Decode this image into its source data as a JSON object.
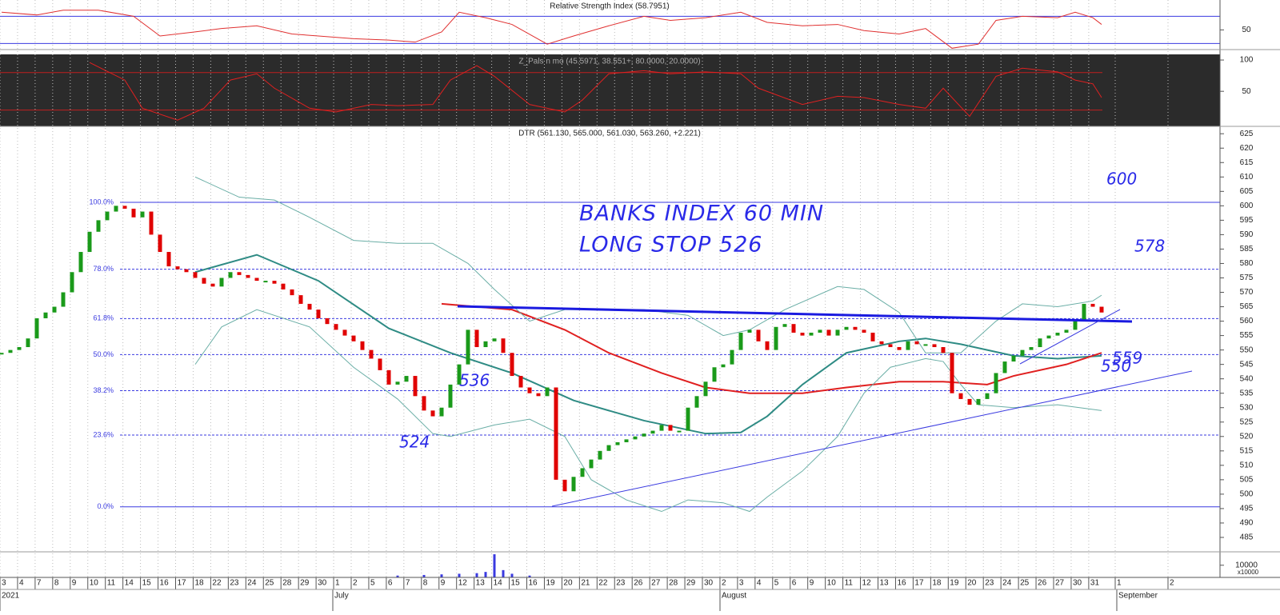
{
  "chart_data": [
    {
      "type": "line",
      "title": "Relative Strength Index (58.7951)",
      "ylim": [
        21,
        94
      ],
      "yticks": [
        50
      ],
      "levels": [
        70,
        30
      ],
      "level_color": "#3a3ae0",
      "color": "#e03030",
      "x": [
        0,
        4,
        7,
        11,
        15,
        18,
        22,
        25,
        29,
        33,
        36,
        40,
        44,
        47,
        50,
        52,
        55,
        58,
        62,
        65,
        69,
        73,
        76,
        80,
        84,
        87,
        91,
        95,
        98,
        102,
        105,
        108,
        111,
        113,
        116,
        120,
        122,
        124,
        125
      ],
      "values": [
        76,
        72,
        79,
        79,
        70,
        41,
        47,
        52,
        56,
        44,
        41,
        37,
        35,
        32,
        47,
        76,
        68,
        58,
        29,
        41,
        56,
        70,
        64,
        68,
        76,
        61,
        56,
        58,
        49,
        44,
        52,
        23,
        29,
        64,
        70,
        68,
        76,
        68,
        58
      ]
    },
    {
      "type": "line",
      "title": "Z_Pals n mo (45.5971, 38.551+, 80.0000, 20.0000)",
      "ylim": [
        -6,
        109
      ],
      "yticks": [
        100,
        50
      ],
      "levels": [
        80,
        20
      ],
      "level_color": "#c02020",
      "color": "#e02020",
      "x": [
        10,
        14,
        16,
        20,
        23,
        26,
        29,
        31,
        35,
        38,
        42,
        45,
        49,
        51,
        54,
        56,
        60,
        64,
        66,
        69,
        73,
        76,
        80,
        84,
        86,
        91,
        95,
        98,
        102,
        105,
        107,
        110,
        113,
        116,
        120,
        122,
        124,
        125
      ],
      "values": [
        96,
        68,
        23,
        4,
        23,
        68,
        78,
        55,
        23,
        17,
        29,
        27,
        29,
        68,
        91,
        74,
        29,
        17,
        36,
        78,
        83,
        78,
        81,
        78,
        55,
        29,
        42,
        40,
        29,
        23,
        55,
        10,
        74,
        87,
        81,
        68,
        62,
        40
      ]
    },
    {
      "type": "candlestick",
      "title": "DTR (561.130, 565.000, 561.030, 563.260, +2.221)",
      "ylim": [
        480,
        627
      ],
      "yticks": [
        485,
        490,
        495,
        500,
        505,
        510,
        515,
        520,
        525,
        530,
        535,
        540,
        545,
        550,
        555,
        560,
        565,
        570,
        575,
        580,
        585,
        590,
        595,
        600,
        605,
        610,
        615,
        620,
        625
      ],
      "up_color": "#1a9a1a",
      "down_color": "#e00000",
      "closes": [
        549,
        550,
        551,
        554,
        561,
        563,
        565,
        570,
        577,
        584,
        591,
        595,
        598,
        600,
        599,
        596,
        598,
        590,
        584,
        579,
        578,
        577,
        575,
        573,
        572,
        575,
        577,
        576,
        575,
        574,
        574,
        573,
        571,
        569,
        566,
        564,
        561,
        559,
        557,
        555,
        553,
        550,
        547,
        543,
        538,
        539,
        541,
        534,
        529,
        527,
        530,
        538,
        545,
        557,
        551,
        553,
        554,
        549,
        541,
        537,
        535,
        534,
        537,
        505,
        501,
        506,
        509,
        512,
        515,
        517,
        518,
        519,
        520,
        521,
        522,
        524,
        522,
        522,
        530,
        534,
        539,
        544,
        545,
        550,
        556,
        557,
        553,
        550,
        558,
        559,
        556,
        555,
        556,
        557,
        555,
        557,
        558,
        557,
        556,
        553,
        552,
        551,
        550,
        553,
        552,
        552,
        551,
        549,
        535,
        533,
        531,
        533,
        535,
        542,
        546,
        548,
        550,
        551,
        554,
        555,
        556,
        557,
        560,
        566,
        565,
        563
      ],
      "overlays": [
        {
          "color": "#2e8b84",
          "width": 2,
          "x": [
            22,
            29,
            36,
            44,
            51,
            58,
            65,
            73,
            80,
            84,
            87,
            91,
            96,
            102,
            105,
            109,
            115,
            120,
            125
          ],
          "values": [
            577,
            583,
            574,
            557.5,
            549,
            542,
            532.5,
            525.5,
            521,
            521.4,
            527,
            538,
            549,
            553,
            554,
            552,
            548,
            547,
            548
          ]
        },
        {
          "color": "#e02020",
          "width": 2,
          "x": [
            50,
            58,
            64,
            69,
            75,
            80,
            85,
            91,
            96,
            102,
            107,
            112,
            115,
            121,
            125
          ],
          "values": [
            566,
            564,
            557,
            549,
            542,
            537,
            535,
            535,
            537,
            539,
            539,
            538,
            541,
            545,
            549
          ]
        },
        {
          "color": "#6aaea6",
          "width": 1,
          "x": [
            22,
            27,
            31,
            35,
            40,
            45,
            49,
            53,
            56,
            60,
            64,
            69,
            73,
            78,
            82,
            85,
            89,
            95,
            98,
            102,
            105,
            109,
            113,
            116,
            120,
            124,
            125
          ],
          "values": [
            610,
            603,
            602,
            596,
            588,
            587,
            587,
            580,
            571,
            560,
            564,
            564,
            564,
            562,
            555,
            557,
            564,
            572,
            571,
            563,
            549,
            549,
            560,
            566,
            565,
            567,
            569
          ]
        },
        {
          "color": "#6aaea6",
          "width": 1,
          "x": [
            22,
            25,
            29,
            35,
            40,
            45,
            49,
            51,
            56,
            60,
            64,
            67,
            71,
            75,
            78,
            82,
            85,
            87,
            91,
            95,
            98,
            101,
            105,
            107,
            109,
            111,
            115,
            120,
            125
          ],
          "values": [
            545,
            558,
            564,
            558,
            544,
            533,
            521,
            520,
            524,
            526,
            520,
            505,
            498,
            494,
            498,
            497,
            494,
            499,
            508,
            520,
            535,
            544,
            547,
            546,
            538,
            531,
            530,
            531,
            529
          ]
        }
      ],
      "fib_color": "#3a3ae0",
      "fib_levels": [
        {
          "value": 601.2,
          "label": "100.0%"
        },
        {
          "value": 578,
          "label": "78.0%"
        },
        {
          "value": 560.9,
          "label": "61.8%"
        },
        {
          "value": 548.4,
          "label": "50.0%"
        },
        {
          "value": 535.9,
          "label": "38.2%"
        },
        {
          "value": 520.5,
          "label": "23.6%"
        },
        {
          "value": 495.6,
          "label": "0.0%"
        }
      ],
      "annotations": [
        "BANKS INDEX 60 MIN",
        "LONG STOP 526",
        "600",
        "578",
        "559",
        "550",
        "536",
        "524"
      ]
    },
    {
      "type": "bar",
      "ylim": [
        0,
        21000
      ],
      "yticks": [
        10000
      ],
      "unit_label": "x10000",
      "color": "#3a3ae0",
      "x": [
        45,
        48,
        50,
        52,
        54,
        55,
        56,
        57,
        58,
        60
      ],
      "values": [
        1500,
        2000,
        2500,
        3000,
        3500,
        4500,
        19000,
        6000,
        3000,
        1500
      ]
    }
  ],
  "x_axis": {
    "dates": [
      "3",
      "4",
      "7",
      "8",
      "9",
      "10",
      "11",
      "14",
      "15",
      "16",
      "17",
      "18",
      "22",
      "23",
      "24",
      "25",
      "28",
      "29",
      "30",
      "1",
      "2",
      "5",
      "6",
      "7",
      "8",
      "9",
      "12",
      "13",
      "14",
      "15",
      "16",
      "19",
      "20",
      "21",
      "22",
      "23",
      "26",
      "27",
      "28",
      "29",
      "30",
      "2",
      "3",
      "4",
      "5",
      "6",
      "9",
      "10",
      "11",
      "12",
      "13",
      "16",
      "17",
      "18",
      "19",
      "20",
      "23",
      "24",
      "25",
      "26",
      "27",
      "30",
      "31",
      "1",
      "2"
    ],
    "months": [
      "2021",
      "July",
      "August",
      "September"
    ]
  }
}
